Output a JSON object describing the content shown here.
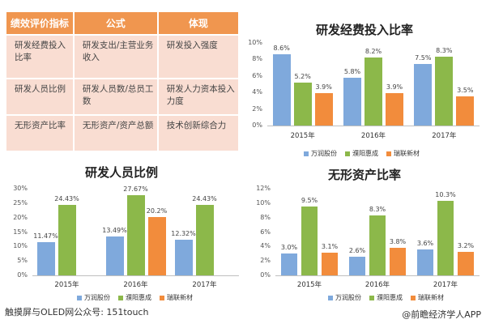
{
  "table": {
    "headers": [
      "绩效评价指标",
      "公式",
      "体现"
    ],
    "rows": [
      [
        "研发经费投入比率",
        "研发支出/主营业务收入",
        "研发投入强度"
      ],
      [
        "研发人员比例",
        "研发人员数/总员工数",
        "研发人力资本投入力度"
      ],
      [
        "无形资产比率",
        "无形资产/资产总额",
        "技术创新综合力"
      ]
    ],
    "header_color": "#f0964f",
    "row_color": "#f9ddd2"
  },
  "legend": {
    "items": [
      {
        "label": "万润股份",
        "color": "#7fa9dc"
      },
      {
        "label": "濮阳惠成",
        "color": "#8cb84a"
      },
      {
        "label": "瑞联新材",
        "color": "#f28c3c"
      }
    ]
  },
  "chart_data": [
    {
      "type": "bar",
      "title": "研发经费投入比率",
      "categories": [
        "2015年",
        "2016年",
        "2017年"
      ],
      "series": [
        {
          "name": "万润股份",
          "values": [
            8.6,
            5.8,
            7.5
          ],
          "color": "#7fa9dc"
        },
        {
          "name": "濮阳惠成",
          "values": [
            5.2,
            8.2,
            8.3
          ],
          "color": "#8cb84a"
        },
        {
          "name": "瑞联新材",
          "values": [
            3.9,
            3.9,
            3.5
          ],
          "color": "#f28c3c"
        }
      ],
      "data_labels": [
        [
          "8.6%",
          "5.2%",
          "3.9%"
        ],
        [
          "5.8%",
          "8.2%",
          "3.9%"
        ],
        [
          "7.5%",
          "8.3%",
          "3.5%"
        ]
      ],
      "yticks": [
        "0%",
        "2%",
        "4%",
        "6%",
        "8%",
        "10%"
      ],
      "ylim": [
        0,
        10
      ],
      "xlabel": "",
      "ylabel": "",
      "legend_position": "bottom"
    },
    {
      "type": "bar",
      "title": "研发人员比例",
      "categories": [
        "2015年",
        "2016年",
        "2017年"
      ],
      "series": [
        {
          "name": "万润股份",
          "values": [
            11.47,
            13.49,
            12.32
          ],
          "color": "#7fa9dc"
        },
        {
          "name": "濮阳惠成",
          "values": [
            24.43,
            27.67,
            24.43
          ],
          "color": "#8cb84a"
        },
        {
          "name": "瑞联新材",
          "values": [
            null,
            20.2,
            null
          ],
          "color": "#f28c3c"
        }
      ],
      "data_labels": [
        [
          "11.47%",
          "24.43%",
          ""
        ],
        [
          "13.49%",
          "27.67%",
          "20.2%"
        ],
        [
          "12.32%",
          "24.43%",
          ""
        ]
      ],
      "yticks": [
        "0%",
        "5%",
        "10%",
        "15%",
        "20%",
        "25%",
        "30%"
      ],
      "ylim": [
        0,
        30
      ],
      "xlabel": "",
      "ylabel": "",
      "legend_position": "bottom"
    },
    {
      "type": "bar",
      "title": "无形资产比率",
      "categories": [
        "2015年",
        "2016年",
        "2017年"
      ],
      "series": [
        {
          "name": "万润股份",
          "values": [
            3.0,
            2.6,
            3.6
          ],
          "color": "#7fa9dc"
        },
        {
          "name": "濮阳惠成",
          "values": [
            9.5,
            8.3,
            10.3
          ],
          "color": "#8cb84a"
        },
        {
          "name": "瑞联新材",
          "values": [
            3.1,
            3.8,
            3.2
          ],
          "color": "#f28c3c"
        }
      ],
      "data_labels": [
        [
          "3.0%",
          "9.5%",
          "3.1%"
        ],
        [
          "2.6%",
          "8.3%",
          "3.8%"
        ],
        [
          "3.6%",
          "10.3%",
          "3.2%"
        ]
      ],
      "yticks": [
        "0%",
        "2%",
        "4%",
        "6%",
        "8%",
        "10%",
        "12%"
      ],
      "ylim": [
        0,
        12
      ],
      "xlabel": "",
      "ylabel": "",
      "legend_position": "bottom"
    }
  ],
  "footer": {
    "left": "触摸屏与OLED网公众号: 151touch",
    "right": "@前瞻经济学人APP"
  }
}
